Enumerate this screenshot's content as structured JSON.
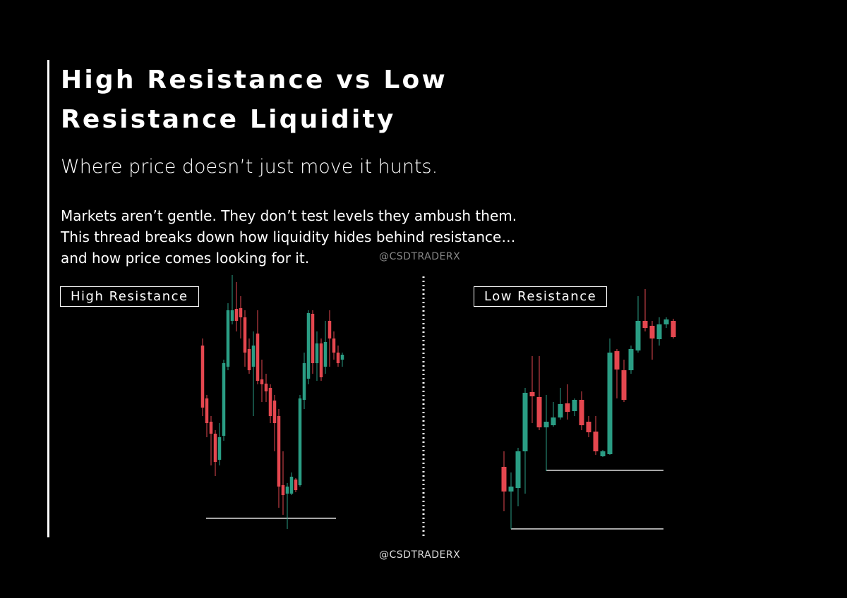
{
  "title_lines": [
    "High Resistance vs Low",
    "Resistance Liquidity"
  ],
  "subtitle": "Where price doesn’t just move it hunts.",
  "body_lines": [
    "Markets aren’t gentle. They don’t test levels they ambush them.",
    "This thread breaks down how liquidity hides behind resistance…",
    "and how price comes looking for it."
  ],
  "watermark_top": "@CSDTRADERX",
  "left_label": "High Resistance",
  "right_label": "Low Resistance",
  "watermark_bottom": "@CSDTRADERX"
}
